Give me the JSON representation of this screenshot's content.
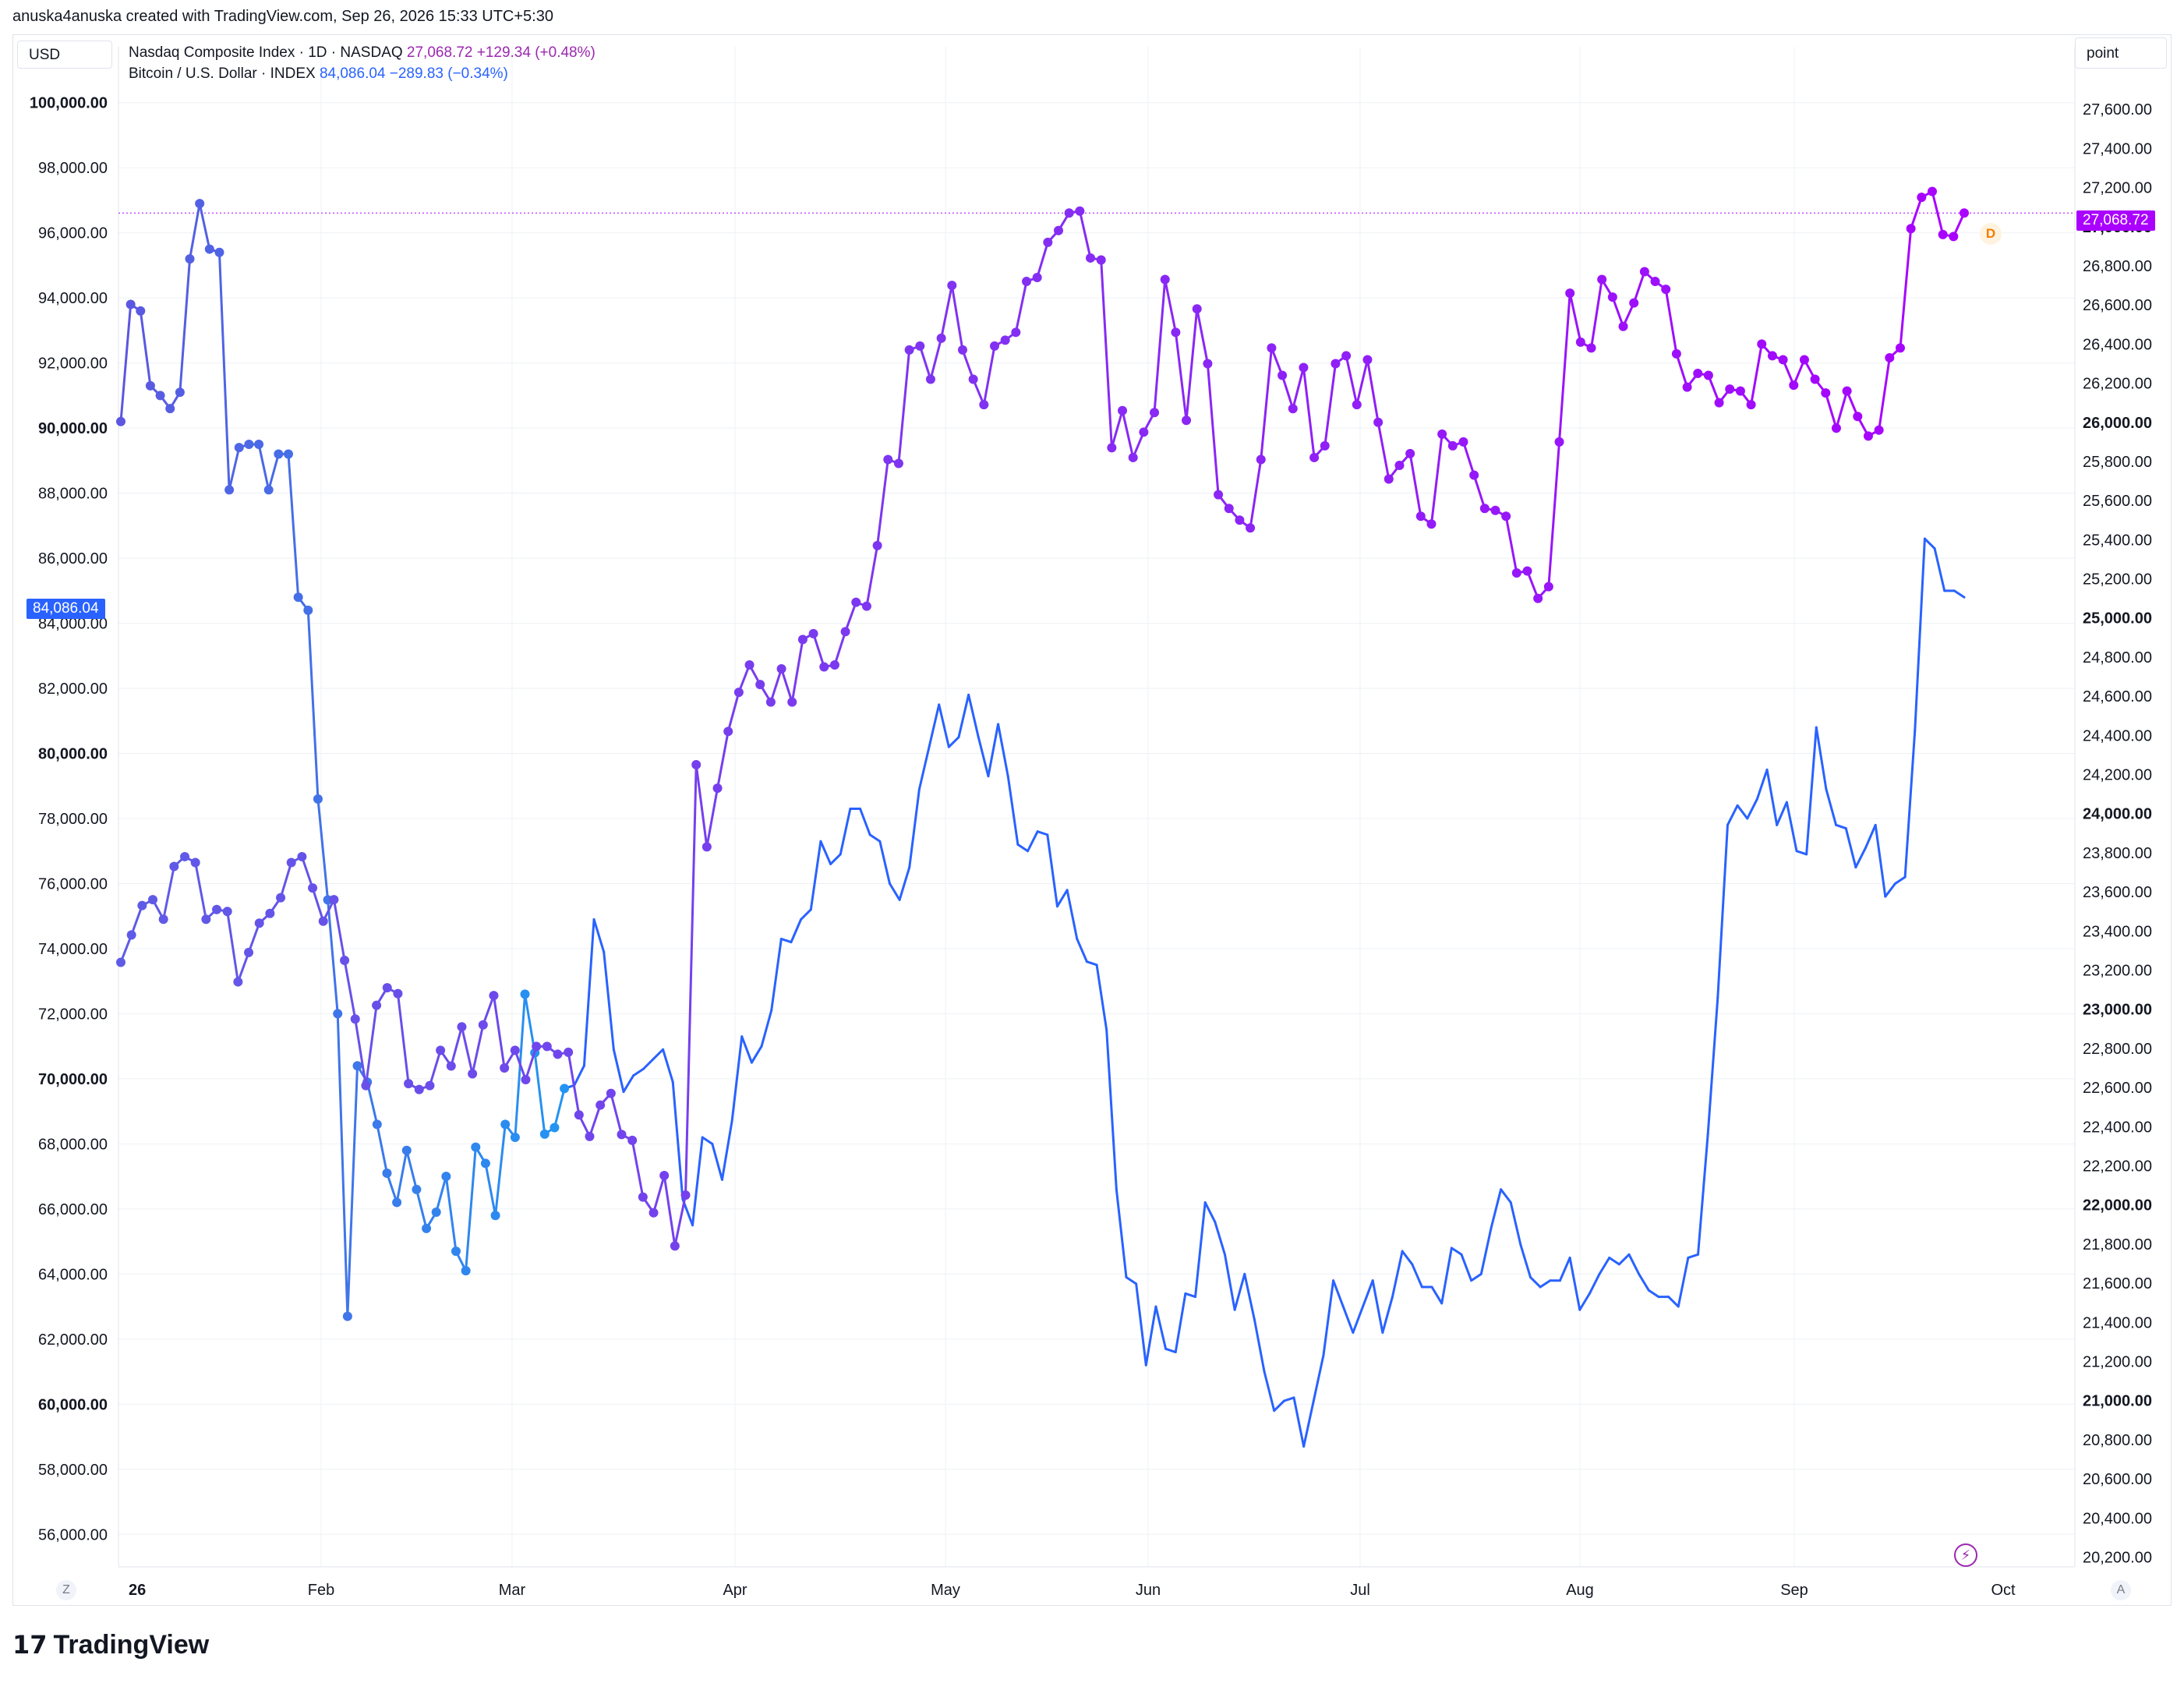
{
  "attribution": "anuska4anuska created with TradingView.com, Sep 26, 2026 15:33 UTC+5:30",
  "left_currency": "USD",
  "right_unit": "point",
  "legend": [
    {
      "name": "Nasdaq Composite Index · 1D · NASDAQ",
      "value": "27,068.72",
      "change": "+129.34 (+0.48%)",
      "color": "#9c27b0"
    },
    {
      "name": "Bitcoin / U.S. Dollar · INDEX",
      "value": "84,086.04",
      "change": "−289.83 (−0.34%)",
      "color": "#2962ff"
    }
  ],
  "left_price_tag": "84,086.04",
  "right_price_tag": "27,068.72",
  "d_badge": "D",
  "bolt_icon": "⚡",
  "corner_left": "Z",
  "corner_right": "A",
  "logo_mark": "17",
  "logo_text": "TradingView",
  "chart_data": {
    "type": "line",
    "x_labels": [
      "26",
      "Feb",
      "Mar",
      "Apr",
      "May",
      "Jun",
      "Jul",
      "Aug",
      "Sep",
      "Oct"
    ],
    "left_axis": {
      "currency": "USD",
      "ylim": [
        55000,
        101000
      ],
      "ticks": [
        56000,
        58000,
        60000,
        62000,
        64000,
        66000,
        68000,
        70000,
        72000,
        74000,
        76000,
        78000,
        80000,
        82000,
        84000,
        86000,
        88000,
        90000,
        92000,
        94000,
        96000,
        98000,
        100000
      ],
      "tick_labels": [
        "56,000.00",
        "58,000.00",
        "60,000.00",
        "62,000.00",
        "64,000.00",
        "66,000.00",
        "68,000.00",
        "70,000.00",
        "72,000.00",
        "74,000.00",
        "76,000.00",
        "78,000.00",
        "80,000.00",
        "82,000.00",
        "84,000.00",
        "86,000.00",
        "88,000.00",
        "90,000.00",
        "92,000.00",
        "94,000.00",
        "96,000.00",
        "98,000.00",
        "100,000.00"
      ],
      "bold_ticks": [
        "60,000.00",
        "70,000.00",
        "80,000.00",
        "90,000.00",
        "100,000.00"
      ]
    },
    "right_axis": {
      "unit": "point",
      "ylim": [
        20150,
        27800
      ],
      "ticks": [
        20200,
        20400,
        20600,
        20800,
        21000,
        21200,
        21400,
        21600,
        21800,
        22000,
        22200,
        22400,
        22600,
        22800,
        23000,
        23200,
        23400,
        23600,
        23800,
        24000,
        24200,
        24400,
        24600,
        24800,
        25000,
        25200,
        25400,
        25600,
        25800,
        26000,
        26200,
        26400,
        26600,
        26800,
        27000,
        27200,
        27400,
        27600
      ],
      "tick_labels": [
        "20,200.00",
        "20,400.00",
        "20,600.00",
        "20,800.00",
        "21,000.00",
        "21,200.00",
        "21,400.00",
        "21,600.00",
        "21,800.00",
        "22,000.00",
        "22,200.00",
        "22,400.00",
        "22,600.00",
        "22,800.00",
        "23,000.00",
        "23,200.00",
        "23,400.00",
        "23,600.00",
        "23,800.00",
        "24,000.00",
        "24,200.00",
        "24,400.00",
        "24,600.00",
        "24,800.00",
        "25,000.00",
        "25,200.00",
        "25,400.00",
        "25,600.00",
        "25,800.00",
        "26,000.00",
        "26,200.00",
        "26,400.00",
        "26,600.00",
        "26,800.00",
        "27,000.00",
        "27,200.00",
        "27,400.00",
        "27,600.00"
      ],
      "bold_ticks": [
        "21,000.00",
        "22,000.00",
        "23,000.00",
        "24,000.00",
        "25,000.00",
        "26,000.00",
        "27,000.00"
      ]
    },
    "series": [
      {
        "name": "Bitcoin / U.S. Dollar",
        "axis": "left",
        "color": "#2962ff",
        "values": [
          90200,
          93800,
          93600,
          91300,
          91000,
          90600,
          91100,
          95200,
          96900,
          95500,
          95400,
          88100,
          89400,
          89500,
          89500,
          88100,
          89200,
          89200,
          84800,
          84400,
          78600,
          75500,
          72000,
          62700,
          70400,
          69900,
          68600,
          67100,
          66200,
          67800,
          66600,
          65400,
          65900,
          67000,
          64700,
          64100,
          67900,
          67400,
          65800,
          68600,
          68200,
          72600,
          70800,
          68300,
          68500,
          69700,
          69800,
          70400,
          74900,
          73900,
          70900,
          69600,
          70100,
          70300,
          70600,
          70900,
          69900,
          66300,
          65500,
          68200,
          68000,
          66900,
          68700,
          71300,
          70500,
          71000,
          72100,
          74300,
          74200,
          74900,
          75200,
          77300,
          76600,
          76900,
          78300,
          78300,
          77500,
          77300,
          76000,
          75500,
          76500,
          78900,
          80200,
          81500,
          80200,
          80500,
          81800,
          80500,
          79300,
          80900,
          79300,
          77200,
          77000,
          77600,
          77500,
          75300,
          75800,
          74300,
          73600,
          73500,
          71500,
          66600,
          63900,
          63700,
          61200,
          63000,
          61700,
          61600,
          63400,
          63300,
          66200,
          65600,
          64600,
          62900,
          64000,
          62600,
          61000,
          59800,
          60100,
          60200,
          58700,
          60100,
          61500,
          63800,
          63000,
          62200,
          63000,
          63800,
          62200,
          63300,
          64700,
          64300,
          63600,
          63600,
          63100,
          64800,
          64600,
          63800,
          64000,
          65400,
          66600,
          66200,
          64900,
          63900,
          63600,
          63800,
          63800,
          64500,
          62900,
          63400,
          64000,
          64500,
          64300,
          64600,
          64000,
          63500,
          63300,
          63300,
          63000,
          64500,
          64600,
          68300,
          72500,
          77800,
          78400,
          78000,
          78600,
          79500,
          77800,
          78500,
          77000,
          76900,
          80800,
          78900,
          77800,
          77700,
          76500,
          77100,
          77800,
          75600,
          76000,
          76200,
          80700,
          86600,
          86300,
          85000,
          85000,
          84800
        ]
      },
      {
        "name": "Nasdaq Composite Index",
        "axis": "right",
        "color": "#9c27b0",
        "values": [
          23240,
          23380,
          23530,
          23560,
          23460,
          23730,
          23780,
          23750,
          23460,
          23510,
          23500,
          23140,
          23290,
          23440,
          23490,
          23570,
          23750,
          23780,
          23620,
          23450,
          23560,
          23250,
          22950,
          22610,
          23020,
          23110,
          23080,
          22620,
          22590,
          22610,
          22790,
          22710,
          22910,
          22670,
          22920,
          23070,
          22700,
          22790,
          22640,
          22810,
          22810,
          22770,
          22780,
          22460,
          22350,
          22510,
          22570,
          22360,
          22330,
          22040,
          21960,
          22150,
          21790,
          22050,
          24250,
          23830,
          24130,
          24420,
          24620,
          24760,
          24660,
          24570,
          24740,
          24570,
          24890,
          24920,
          24750,
          24760,
          24930,
          25080,
          25060,
          25370,
          25810,
          25790,
          26370,
          26390,
          26220,
          26430,
          26700,
          26370,
          26220,
          26090,
          26390,
          26420,
          26460,
          26720,
          26740,
          26920,
          26980,
          27070,
          27080,
          26840,
          26830,
          25870,
          26060,
          25820,
          25950,
          26050,
          26730,
          26460,
          26010,
          26580,
          26300,
          25630,
          25560,
          25500,
          25460,
          25810,
          26380,
          26240,
          26070,
          26280,
          25820,
          25880,
          26300,
          26340,
          26090,
          26320,
          26000,
          25710,
          25780,
          25840,
          25520,
          25480,
          25940,
          25880,
          25900,
          25730,
          25560,
          25550,
          25520,
          25230,
          25240,
          25100,
          25160,
          25900,
          26660,
          26410,
          26380,
          26730,
          26640,
          26490,
          26610,
          26770,
          26720,
          26680,
          26350,
          26180,
          26250,
          26240,
          26100,
          26170,
          26160,
          26090,
          26400,
          26340,
          26320,
          26190,
          26320,
          26220,
          26150,
          25970,
          26160,
          26030,
          25930,
          25960,
          26330,
          26380,
          26990,
          27150,
          27180,
          26960,
          26950,
          27070
        ]
      }
    ],
    "dot_markers": "Bitcoin line is plotted with dots from ~Jan 1 to ~Mar 31; Nasdaq line is plotted with dots throughout"
  }
}
